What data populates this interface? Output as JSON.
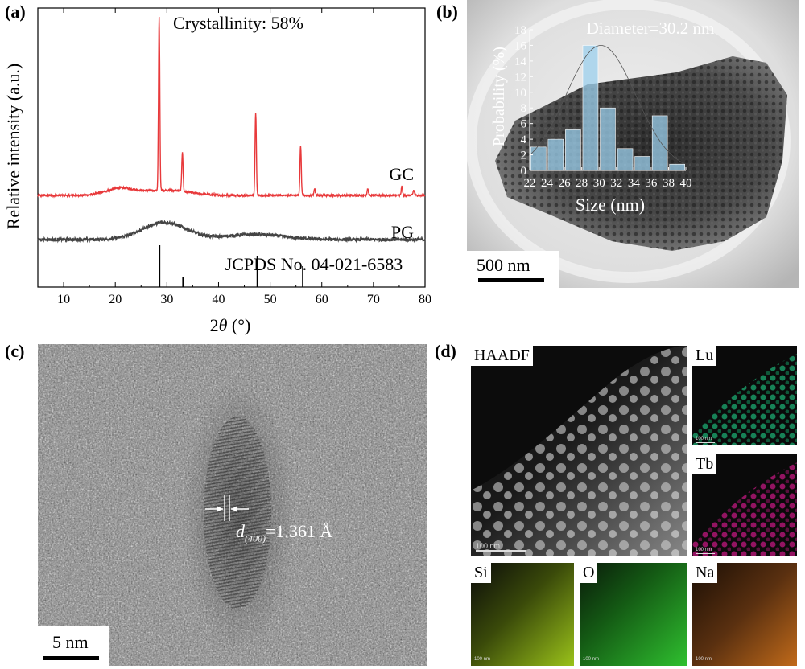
{
  "panels": {
    "a": {
      "label": "(a)",
      "annotation": "Crystallinity: 58%",
      "ref": "JCPDS No. 04-021-6583",
      "curve_gc": "GC",
      "curve_pg": "PG"
    },
    "b": {
      "label": "(b)",
      "scalebar": "500 nm",
      "inset_title": "Diameter=30.2 nm"
    },
    "c": {
      "label": "(c)",
      "scalebar": "5 nm",
      "d_letter": "d",
      "d_sub": "(400)",
      "d_value": "=1.361 Å"
    },
    "d": {
      "label": "(d)",
      "tiles": [
        "HAADF",
        "Lu",
        "Tb",
        "Si",
        "O",
        "Na"
      ],
      "scalebar": "100 nm"
    }
  },
  "chart_data": [
    {
      "type": "line",
      "panel": "a",
      "xlabel": "2θ (°)",
      "xlabel_parts": [
        "2",
        "θ",
        " (°)"
      ],
      "ylabel": "Relative intensity (a.u.)",
      "xlim": [
        5,
        80
      ],
      "xticks": [
        10,
        20,
        30,
        40,
        50,
        60,
        70,
        80
      ],
      "series": [
        {
          "name": "GC",
          "color": "#e8393b",
          "baseline": 0.18,
          "peaks": [
            {
              "x": 28.5,
              "h": 1.0
            },
            {
              "x": 33.0,
              "h": 0.23
            },
            {
              "x": 47.2,
              "h": 0.48
            },
            {
              "x": 55.9,
              "h": 0.29
            },
            {
              "x": 58.6,
              "h": 0.04
            },
            {
              "x": 68.9,
              "h": 0.04
            },
            {
              "x": 75.5,
              "h": 0.05
            },
            {
              "x": 77.8,
              "h": 0.03
            }
          ]
        },
        {
          "name": "PG",
          "color": "#444444"
        }
      ],
      "reference_lines": [
        {
          "x": 28.6,
          "h": 1.0
        },
        {
          "x": 33.1,
          "h": 0.25
        },
        {
          "x": 47.5,
          "h": 0.75
        },
        {
          "x": 56.3,
          "h": 0.5
        }
      ]
    },
    {
      "type": "bar",
      "panel": "b-inset",
      "title": "Diameter=30.2 nm",
      "xlabel": "Size (nm)",
      "ylabel": "Probability (%)",
      "x": [
        23,
        25,
        27,
        29,
        31,
        33,
        35,
        37,
        39
      ],
      "values": [
        3,
        4,
        5.2,
        16,
        8,
        2.8,
        1.8,
        7,
        0.8
      ],
      "xticks": [
        22,
        24,
        26,
        28,
        30,
        32,
        34,
        36,
        38,
        40
      ],
      "yticks": [
        0,
        2,
        4,
        6,
        8,
        10,
        12,
        14,
        16,
        18
      ],
      "xlim": [
        22,
        40
      ],
      "ylim": [
        0,
        18
      ],
      "fit": {
        "mean": 30.2,
        "peak": 16,
        "sigma": 4.0
      }
    }
  ],
  "colors": {
    "lu_map": "#1aa06a",
    "tb_map": "#c0177e",
    "si_map": "#9ac21a",
    "o_map": "#2fbf2f",
    "na_map": "#c06a1a",
    "bar_fill": "#9cd0ee"
  }
}
